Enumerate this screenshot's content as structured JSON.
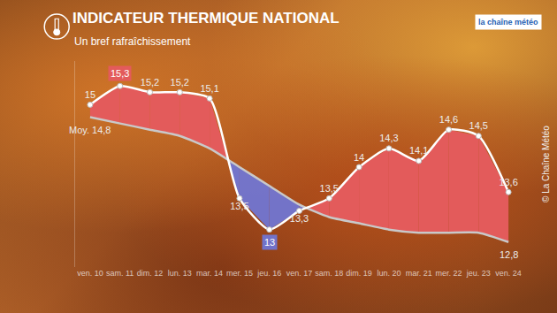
{
  "chart_data": {
    "type": "line",
    "title": "INDICATEUR THERMIQUE NATIONAL",
    "subtitle": "Un bref rafraîchissement",
    "logo": "la chaîne météo",
    "credit": "© La Chaîne Météo",
    "categories": [
      "ven. 10",
      "sam. 11",
      "dim. 12",
      "lun. 13",
      "mar. 14",
      "mer. 15",
      "jeu. 16",
      "ven. 17",
      "sam. 18",
      "dim. 19",
      "lun. 20",
      "mar. 21",
      "mer. 22",
      "jeu. 23",
      "ven. 24"
    ],
    "series": [
      {
        "color": "#e35b5b",
        "values": [
          15,
          15.3,
          15.2,
          15.2,
          15.1,
          13.5,
          13,
          13.3,
          13.5,
          14,
          14.3,
          14.1,
          14.6,
          14.5,
          13.6
        ],
        "value_labels": [
          "15",
          "15,3",
          "15,2",
          "15,2",
          "15,1",
          "13,5",
          "13",
          "13,3",
          "13,5",
          "14",
          "14,3",
          "14,1",
          "14,6",
          "14,5",
          "13,6"
        ]
      },
      {
        "color": "#c9c9c9",
        "values": [
          14.8,
          14.7,
          14.6,
          14.5,
          14.3,
          14.0,
          13.7,
          13.4,
          13.2,
          13.1,
          13.0,
          12.95,
          12.95,
          12.95,
          12.8
        ],
        "value_labels": [
          "Moy. 14,8",
          null,
          null,
          null,
          null,
          null,
          null,
          null,
          null,
          null,
          null,
          null,
          null,
          null,
          "12,8"
        ]
      }
    ],
    "ylim": [
      12.4,
      15.7
    ],
    "tick_labels": "x",
    "data_labels": true,
    "grid": false
  }
}
